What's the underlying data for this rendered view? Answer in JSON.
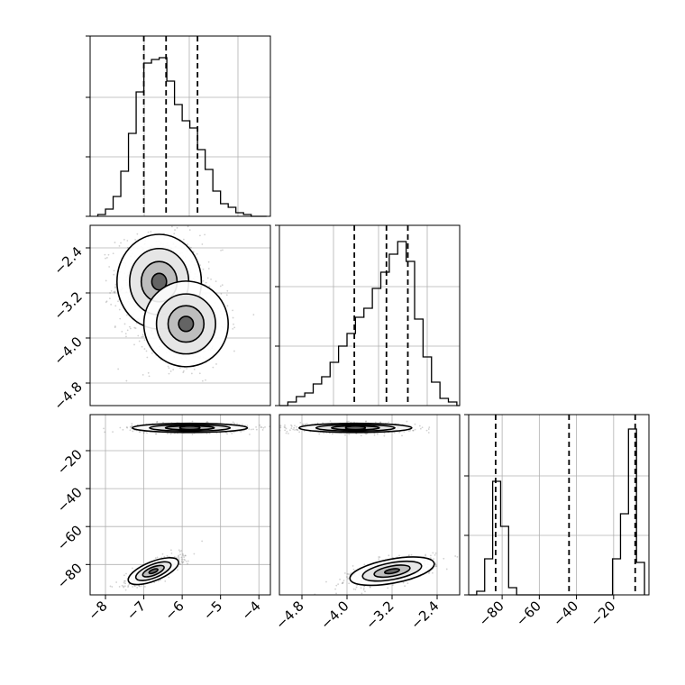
{
  "figure": {
    "type": "corner-plot",
    "parameters": 3,
    "background": "#ffffff",
    "ink": "#000000",
    "grid_color": "#b0b0b0"
  },
  "chart_data": [
    {
      "id": "hist_p1",
      "type": "histogram",
      "param": "p1",
      "xlim": [
        -8.4,
        -3.7
      ],
      "ylim": [
        0,
        1
      ],
      "grid": true,
      "bin_edges": [
        -8.2,
        -8.0,
        -7.8,
        -7.6,
        -7.4,
        -7.2,
        -7.0,
        -6.8,
        -6.6,
        -6.4,
        -6.2,
        -6.0,
        -5.8,
        -5.6,
        -5.4,
        -5.2,
        -5.0,
        -4.8,
        -4.6,
        -4.4,
        -4.2,
        -4.0,
        -3.8
      ],
      "counts": [
        0.01,
        0.04,
        0.11,
        0.25,
        0.46,
        0.69,
        0.85,
        0.87,
        0.88,
        0.75,
        0.62,
        0.53,
        0.49,
        0.37,
        0.26,
        0.14,
        0.07,
        0.05,
        0.02,
        0.01,
        0.0,
        0.0
      ],
      "quantile_lines": [
        -7.0,
        -6.42,
        -5.6
      ]
    },
    {
      "id": "scatter_p2_p1",
      "type": "scatter",
      "x_param": "p1",
      "y_param": "p2",
      "xlim": [
        -8.4,
        -3.7
      ],
      "ylim": [
        -5.2,
        -2.0
      ],
      "grid": true,
      "y_ticks": [
        -2.4,
        -3.2,
        -4.0,
        -4.8
      ],
      "y_tick_labels": [
        "−2.4",
        "−3.2",
        "−4.0",
        "−4.8"
      ],
      "clusters": [
        {
          "center": [
            -6.6,
            -3.0
          ],
          "spread": [
            0.55,
            0.42
          ],
          "corr": 0.0,
          "weight": 0.6
        },
        {
          "center": [
            -5.9,
            -3.75
          ],
          "spread": [
            0.55,
            0.38
          ],
          "corr": 0.0,
          "weight": 0.4
        }
      ],
      "density_peak": [
        -6.8,
        -3.15
      ]
    },
    {
      "id": "hist_p2",
      "type": "histogram",
      "param": "p2",
      "xlim": [
        -5.2,
        -2.0
      ],
      "ylim": [
        0,
        1
      ],
      "grid": true,
      "bin_edges": [
        -5.2,
        -5.05,
        -4.9,
        -4.75,
        -4.6,
        -4.45,
        -4.3,
        -4.15,
        -4.0,
        -3.85,
        -3.7,
        -3.55,
        -3.4,
        -3.25,
        -3.1,
        -2.95,
        -2.8,
        -2.65,
        -2.5,
        -2.35,
        -2.2,
        -2.05,
        -2.0
      ],
      "counts": [
        0.0,
        0.02,
        0.05,
        0.07,
        0.12,
        0.16,
        0.24,
        0.33,
        0.4,
        0.49,
        0.54,
        0.65,
        0.74,
        0.84,
        0.91,
        0.8,
        0.48,
        0.27,
        0.13,
        0.04,
        0.02,
        0.0
      ],
      "quantile_lines": [
        -3.87,
        -3.3,
        -2.92
      ]
    },
    {
      "id": "scatter_p3_p1",
      "type": "scatter",
      "x_param": "p1",
      "y_param": "p3",
      "xlim": [
        -8.4,
        -3.7
      ],
      "ylim": [
        -96,
        -1
      ],
      "grid": true,
      "x_ticks": [
        -8,
        -7,
        -6,
        -5,
        -4
      ],
      "x_tick_labels": [
        "−8",
        "−7",
        "−6",
        "−5",
        "−4"
      ],
      "y_ticks": [
        -20,
        -40,
        -60,
        -80
      ],
      "y_tick_labels": [
        "−20",
        "−40",
        "−60",
        "−80"
      ],
      "clusters": [
        {
          "center": [
            -5.8,
            -8.0
          ],
          "spread": [
            0.75,
            1.2
          ],
          "corr": 0.0,
          "weight": 0.55
        },
        {
          "center": [
            -6.75,
            -83.5
          ],
          "spread": [
            0.35,
            3.8
          ],
          "corr": 0.75,
          "weight": 0.45
        }
      ]
    },
    {
      "id": "scatter_p3_p2",
      "type": "scatter",
      "x_param": "p2",
      "y_param": "p3",
      "xlim": [
        -5.2,
        -2.0
      ],
      "ylim": [
        -96,
        -1
      ],
      "grid": true,
      "x_ticks": [
        -4.8,
        -4.0,
        -3.2,
        -2.4
      ],
      "x_tick_labels": [
        "−4.8",
        "−4.0",
        "−3.2",
        "−2.4"
      ],
      "clusters": [
        {
          "center": [
            -3.85,
            -8.0
          ],
          "spread": [
            0.5,
            1.2
          ],
          "corr": 0.0,
          "weight": 0.55
        },
        {
          "center": [
            -3.2,
            -83.5
          ],
          "spread": [
            0.38,
            3.8
          ],
          "corr": 0.55,
          "weight": 0.45
        }
      ]
    },
    {
      "id": "hist_p3",
      "type": "histogram",
      "param": "p3",
      "xlim": [
        -98,
        -1
      ],
      "ylim": [
        0,
        1
      ],
      "grid": true,
      "x_ticks": [
        -80,
        -60,
        -40,
        -20
      ],
      "x_tick_labels": [
        "−80",
        "−60",
        "−40",
        "−20"
      ],
      "bin_edges": [
        -98.0,
        -93.7,
        -89.4,
        -85.1,
        -80.8,
        -76.5,
        -72.2,
        -67.9,
        -63.6,
        -59.3,
        -55.0,
        -50.7,
        -46.4,
        -42.1,
        -37.8,
        -33.5,
        -29.2,
        -24.9,
        -20.6,
        -16.3,
        -12.0,
        -7.7,
        -3.4
      ],
      "counts": [
        0.0,
        0.02,
        0.2,
        0.63,
        0.38,
        0.04,
        0.0,
        0.0,
        0.0,
        0.0,
        0.0,
        0.0,
        0.0,
        0.0,
        0.0,
        0.0,
        0.0,
        0.0,
        0.2,
        0.45,
        0.92,
        0.18
      ],
      "quantile_lines": [
        -83.5,
        -44.0,
        -8.4
      ]
    }
  ]
}
